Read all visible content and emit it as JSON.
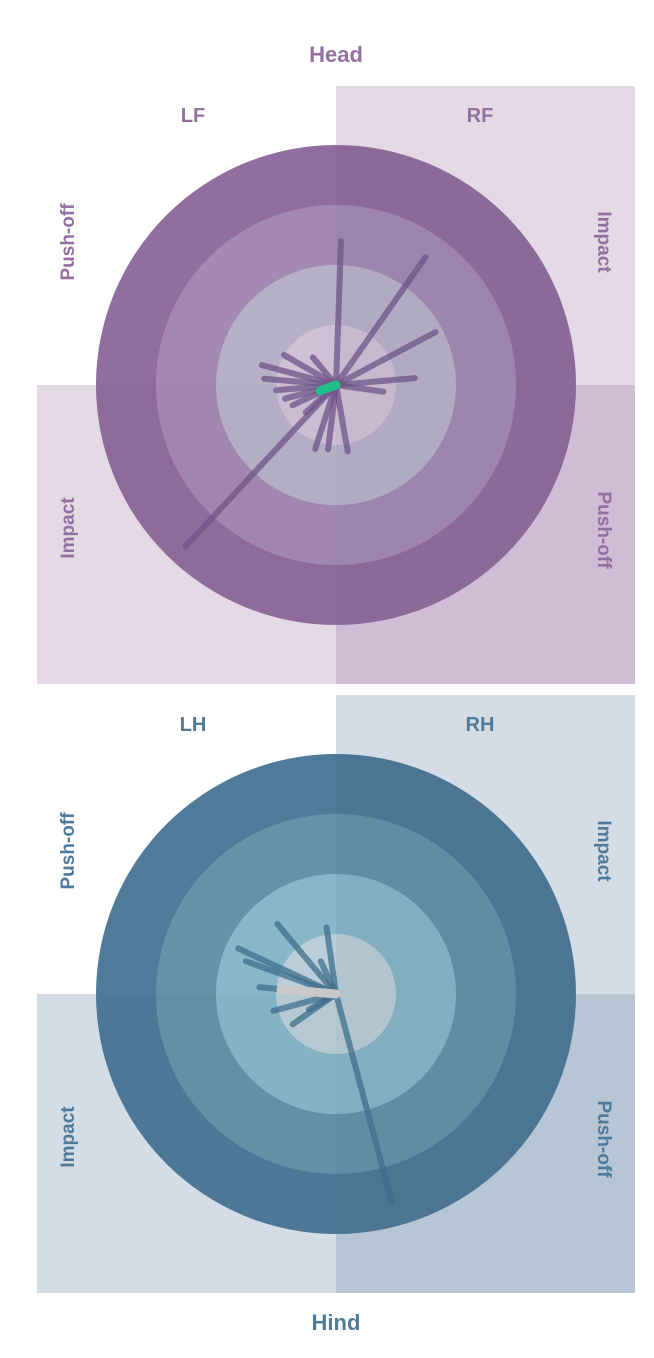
{
  "labels": {
    "head": "Head",
    "hind": "Hind",
    "lf": "LF",
    "rf": "RF",
    "lh": "LH",
    "rh": "RH",
    "push_off": "Push-off",
    "impact": "Impact"
  },
  "colors": {
    "front_text": "#9370a0",
    "hind_text": "#4f7a9a",
    "front_quad_light": "#e4dae6",
    "front_quad_dark": "#d0bcd5",
    "hind_quad_light": "#d4dde6",
    "hind_quad_dark": "#b6c6d5",
    "front_ring_outer": "#926d9f",
    "front_ring_2": "#a48ab3",
    "front_ring_3": "#b7b1c8",
    "front_ring_inner": "#cfc0d5",
    "hind_ring_outer": "#4f7a9a",
    "hind_ring_2": "#6792aa",
    "hind_ring_3": "#89b6c9",
    "hind_ring_inner": "#b9ced8",
    "front_vector": "#6e5488",
    "front_mean": "#1fbf8a",
    "hind_vector": "#3f6e8c",
    "hind_mean": "#c9c9c9"
  },
  "chart_data": [
    {
      "type": "polar-vector",
      "panel": "front",
      "vectors": [
        {
          "angle": 55,
          "r": 0.65
        },
        {
          "angle": 88,
          "r": 0.6
        },
        {
          "angle": 28,
          "r": 0.47
        },
        {
          "angle": 5,
          "r": 0.33
        },
        {
          "angle": -8,
          "r": 0.2
        },
        {
          "angle": 150,
          "r": 0.25
        },
        {
          "angle": 165,
          "r": 0.32
        },
        {
          "angle": 175,
          "r": 0.3
        },
        {
          "angle": 185,
          "r": 0.25
        },
        {
          "angle": 195,
          "r": 0.22
        },
        {
          "angle": 205,
          "r": 0.2
        },
        {
          "angle": 222,
          "r": 0.17
        },
        {
          "angle": 227,
          "r": 0.92
        },
        {
          "angle": 252,
          "r": 0.28
        },
        {
          "angle": 263,
          "r": 0.27
        },
        {
          "angle": 280,
          "r": 0.28
        },
        {
          "angle": 130,
          "r": 0.15
        }
      ],
      "mean": {
        "angle": 200,
        "r": 0.07
      }
    },
    {
      "type": "polar-vector",
      "panel": "hind",
      "vectors": [
        {
          "angle": 155,
          "r": 0.45
        },
        {
          "angle": 160,
          "r": 0.4
        },
        {
          "angle": 130,
          "r": 0.38
        },
        {
          "angle": 115,
          "r": 0.15
        },
        {
          "angle": 175,
          "r": 0.32
        },
        {
          "angle": 195,
          "r": 0.27
        },
        {
          "angle": 210,
          "r": 0.13
        },
        {
          "angle": 215,
          "r": 0.22
        },
        {
          "angle": 98,
          "r": 0.28
        },
        {
          "angle": 285,
          "r": 0.9
        }
      ],
      "mean": {
        "angle": 175,
        "r": 0.23
      }
    }
  ]
}
